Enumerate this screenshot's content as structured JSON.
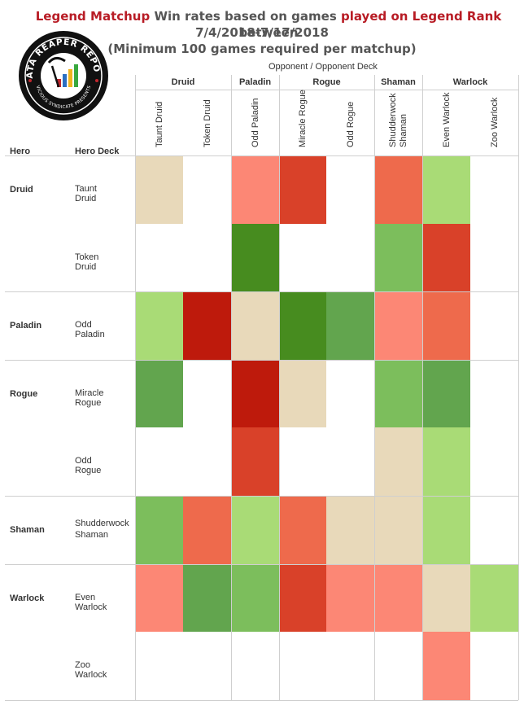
{
  "title": {
    "line1_a": "Legend Matchup",
    "line1_b": " Win rates based on games ",
    "line1_c": "played on Legend Rank",
    "line1_d": "  between",
    "line2": "7/4/2018-7/17/2018",
    "line3": "(Minimum 100 games required per matchup)"
  },
  "logo": {
    "text_top": "DATA REAPER REPORT",
    "text_bottom": "VICIOUS SYNDICATE PRESENTS"
  },
  "axis": {
    "opponent_label": "Opponent  /  Opponent Deck",
    "hero_label": "Hero",
    "hero_deck_label": "Hero Deck"
  },
  "chart_data": {
    "type": "heatmap",
    "title": "Legend Matchup Win rates based on games played on Legend Rank between 7/4/2018-7/17/2018",
    "subtitle": "(Minimum 100 games required per matchup)",
    "colors": {
      "dark_red": "#be1a0c",
      "red": "#d94129",
      "red_orange": "#ee6a4c",
      "salmon": "#fc8775",
      "neutral": "#e8d9ba",
      "light_green": "#a9db76",
      "green": "#7cbe5c",
      "mid_green": "#62a54e",
      "dark_green": "#478c1f",
      "empty": "#ffffff"
    },
    "column_groups": [
      {
        "name": "Druid",
        "decks": [
          "Taunt Druid",
          "Token Druid"
        ]
      },
      {
        "name": "Paladin",
        "decks": [
          "Odd Paladin"
        ]
      },
      {
        "name": "Rogue",
        "decks": [
          "Miracle Rogue",
          "Odd Rogue"
        ]
      },
      {
        "name": "Shaman",
        "decks": [
          "Shudderwock Shaman"
        ]
      },
      {
        "name": "Warlock",
        "decks": [
          "Even Warlock",
          "Zoo Warlock"
        ]
      }
    ],
    "columns": [
      "Taunt Druid",
      "Token Druid",
      "Odd Paladin",
      "Miracle Rogue",
      "Odd Rogue",
      "Shudderwock Shaman",
      "Even Warlock",
      "Zoo Warlock"
    ],
    "row_groups": [
      {
        "name": "Druid",
        "decks": [
          "Taunt Druid",
          "Token Druid"
        ]
      },
      {
        "name": "Paladin",
        "decks": [
          "Odd Paladin"
        ]
      },
      {
        "name": "Rogue",
        "decks": [
          "Miracle Rogue",
          "Odd Rogue"
        ]
      },
      {
        "name": "Shaman",
        "decks": [
          "Shudderwock Shaman"
        ]
      },
      {
        "name": "Warlock",
        "decks": [
          "Even Warlock",
          "Zoo Warlock"
        ]
      }
    ],
    "rows": [
      "Taunt Druid",
      "Token Druid",
      "Odd Paladin",
      "Miracle Rogue",
      "Odd Rogue",
      "Shudderwock Shaman",
      "Even Warlock",
      "Zoo Warlock"
    ],
    "cells": [
      [
        "neutral",
        "empty",
        "salmon",
        "red",
        "empty",
        "red_orange",
        "light_green",
        "empty"
      ],
      [
        "empty",
        "empty",
        "dark_green",
        "empty",
        "empty",
        "green",
        "red",
        "empty"
      ],
      [
        "light_green",
        "dark_red",
        "neutral",
        "dark_green",
        "mid_green",
        "salmon",
        "red_orange",
        "empty"
      ],
      [
        "mid_green",
        "empty",
        "dark_red",
        "neutral",
        "empty",
        "green",
        "mid_green",
        "empty"
      ],
      [
        "empty",
        "empty",
        "red",
        "empty",
        "empty",
        "neutral",
        "light_green",
        "empty"
      ],
      [
        "green",
        "red_orange",
        "light_green",
        "red_orange",
        "neutral",
        "neutral",
        "light_green",
        "empty"
      ],
      [
        "salmon",
        "mid_green",
        "green",
        "red",
        "salmon",
        "salmon",
        "neutral",
        "light_green"
      ],
      [
        "empty",
        "empty",
        "empty",
        "empty",
        "empty",
        "empty",
        "salmon",
        "empty"
      ]
    ]
  }
}
